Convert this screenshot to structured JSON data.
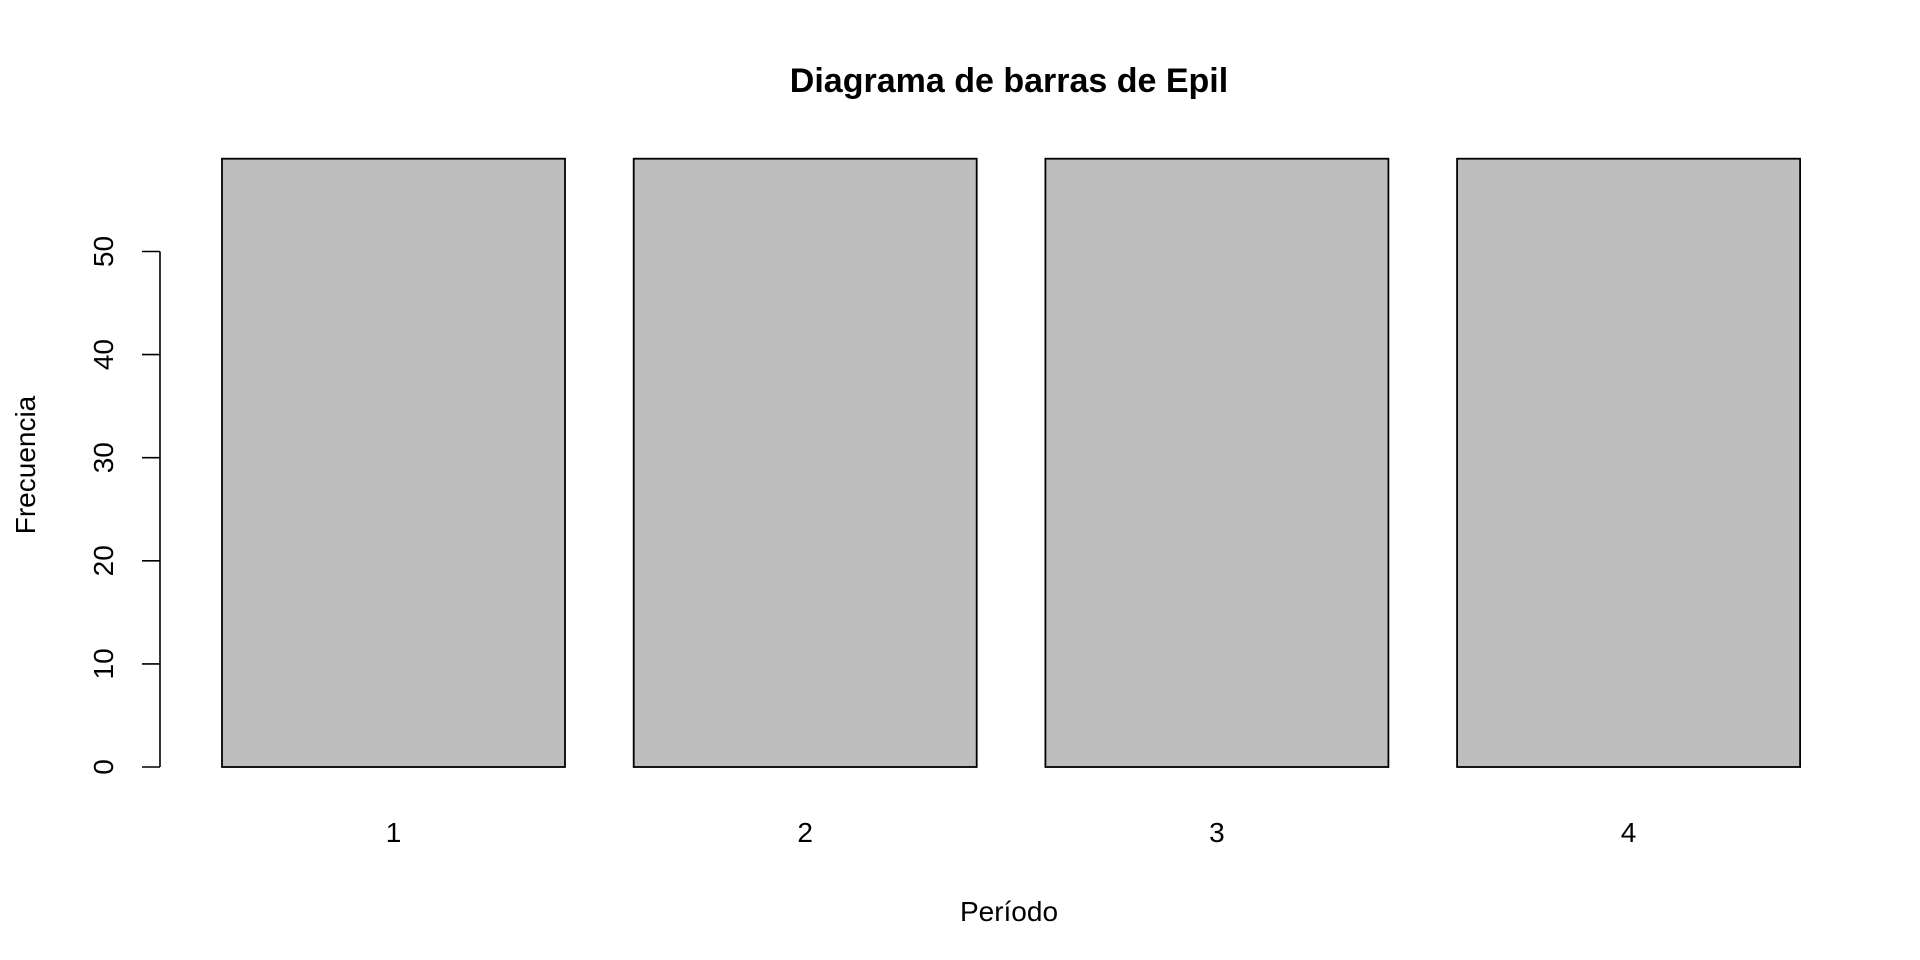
{
  "chart_data": {
    "type": "bar",
    "title": "Diagrama de barras de Epil",
    "xlabel": "Período",
    "ylabel": "Frecuencia",
    "categories": [
      "1",
      "2",
      "3",
      "4"
    ],
    "values": [
      59,
      59,
      59,
      59
    ],
    "ylim": [
      0,
      59
    ],
    "yticks": [
      0,
      10,
      20,
      30,
      40,
      50
    ],
    "bar_color": "#bebebe",
    "border_color": "#000000",
    "grid": false,
    "legend": "none"
  }
}
